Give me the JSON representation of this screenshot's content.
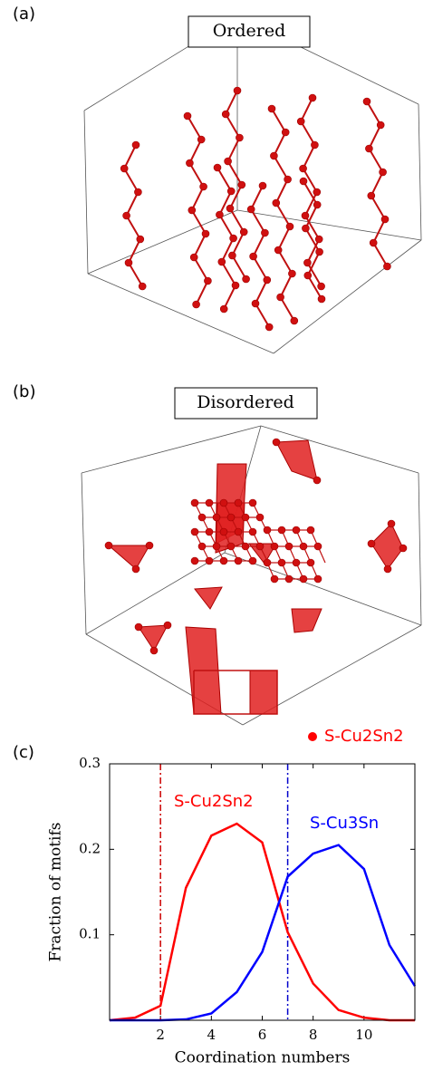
{
  "panels": {
    "a": {
      "label": "(a)",
      "title": "Ordered"
    },
    "b": {
      "label": "(b)",
      "title": "Disordered",
      "legend": "S-Cu2Sn2"
    },
    "c": {
      "label": "(c)"
    }
  },
  "chart_data": {
    "type": "line",
    "x": [
      0,
      1,
      2,
      3,
      4,
      5,
      6,
      7,
      8,
      9,
      10,
      11,
      12
    ],
    "series": [
      {
        "name": "S-Cu2Sn2",
        "color": "#ff0000",
        "values": [
          0,
          0.003,
          0.017,
          0.155,
          0.216,
          0.23,
          0.208,
          0.103,
          0.043,
          0.012,
          0.003,
          0,
          0
        ]
      },
      {
        "name": "S-Cu3Sn",
        "color": "#0000ff",
        "values": [
          0,
          0,
          0,
          0.001,
          0.008,
          0.033,
          0.08,
          0.168,
          0.195,
          0.205,
          0.177,
          0.088,
          0.04
        ]
      }
    ],
    "vlines": [
      {
        "x": 2,
        "color": "#cc0000"
      },
      {
        "x": 7,
        "color": "#0000cc"
      }
    ],
    "xlabel": "Coordination numbers",
    "ylabel": "Fraction of motifs",
    "xlim": [
      0,
      12
    ],
    "ylim": [
      0,
      0.3
    ],
    "xticks": [
      2,
      4,
      6,
      8,
      10
    ],
    "yticks": [
      0.1,
      0.2,
      0.3
    ]
  }
}
